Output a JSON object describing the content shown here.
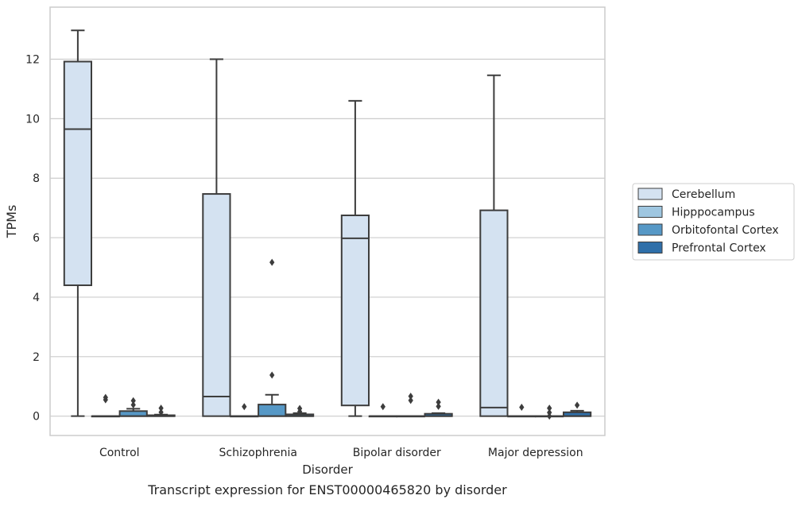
{
  "chart_data": {
    "type": "box",
    "title": "",
    "caption": "Transcript expression for ENST00000465820 by disorder",
    "xlabel": "Disorder",
    "ylabel": "TPMs",
    "ylim": [
      -0.65,
      13.75
    ],
    "yticks": [
      0,
      2,
      4,
      6,
      8,
      10,
      12
    ],
    "grid": "horizontal",
    "legend_position": "right",
    "categories": [
      "Control",
      "Schizophrenia",
      "Bipolar disorder",
      "Major depression"
    ],
    "series": [
      {
        "name": "Cerebellum",
        "color": "#d4e2f1",
        "boxes": [
          {
            "min": 0,
            "q1": 4.4,
            "median": 9.65,
            "q3": 11.92,
            "max": 12.97,
            "outliers": []
          },
          {
            "min": 0,
            "q1": 0,
            "median": 0.66,
            "q3": 7.47,
            "max": 12.0,
            "outliers": []
          },
          {
            "min": 0,
            "q1": 0.36,
            "median": 5.98,
            "q3": 6.75,
            "max": 10.6,
            "outliers": []
          },
          {
            "min": 0,
            "q1": 0,
            "median": 0.29,
            "q3": 6.92,
            "max": 11.46,
            "outliers": []
          }
        ]
      },
      {
        "name": "Hipppocampus",
        "color": "#9ec6e0",
        "boxes": [
          {
            "min": 0,
            "q1": 0,
            "median": 0,
            "q3": 0,
            "max": 0,
            "outliers": [
              0.55,
              0.63
            ]
          },
          {
            "min": 0,
            "q1": 0,
            "median": 0,
            "q3": 0,
            "max": 0,
            "outliers": [
              0.32
            ]
          },
          {
            "min": 0,
            "q1": 0,
            "median": 0,
            "q3": 0,
            "max": 0,
            "outliers": [
              0.32
            ]
          },
          {
            "min": 0,
            "q1": 0,
            "median": 0,
            "q3": 0,
            "max": 0,
            "outliers": [
              0.3
            ]
          }
        ]
      },
      {
        "name": "Orbitofontal Cortex",
        "color": "#5698c6",
        "boxes": [
          {
            "min": 0,
            "q1": 0,
            "median": 0,
            "q3": 0.17,
            "max": 0.25,
            "outliers": [
              0.38,
              0.52
            ]
          },
          {
            "min": 0,
            "q1": 0,
            "median": 0,
            "q3": 0.39,
            "max": 0.72,
            "outliers": [
              1.38,
              5.17
            ]
          },
          {
            "min": 0,
            "q1": 0,
            "median": 0,
            "q3": 0,
            "max": 0,
            "outliers": [
              0.53,
              0.67
            ]
          },
          {
            "min": 0,
            "q1": 0,
            "median": 0,
            "q3": 0,
            "max": 0,
            "outliers": [
              0.0,
              0.12,
              0.27
            ]
          }
        ]
      },
      {
        "name": "Prefrontal Cortex",
        "color": "#2f6fa9",
        "boxes": [
          {
            "min": 0,
            "q1": 0,
            "median": 0,
            "q3": 0.03,
            "max": 0.05,
            "outliers": [
              0.13,
              0.27
            ]
          },
          {
            "min": 0,
            "q1": 0,
            "median": 0,
            "q3": 0.06,
            "max": 0.1,
            "outliers": [
              0.15,
              0.26
            ]
          },
          {
            "min": 0,
            "q1": 0,
            "median": 0,
            "q3": 0.08,
            "max": 0.1,
            "outliers": [
              0.33,
              0.47
            ]
          },
          {
            "min": 0,
            "q1": 0,
            "median": 0,
            "q3": 0.13,
            "max": 0.18,
            "outliers": [
              0.37
            ]
          }
        ]
      }
    ]
  }
}
